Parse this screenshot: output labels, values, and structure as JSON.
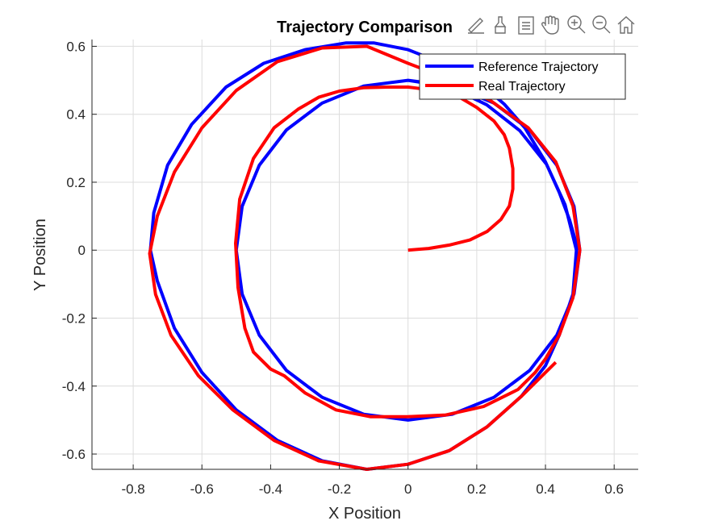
{
  "toolbar": {
    "icons": [
      "brush-pen-icon",
      "data-tips-icon",
      "legend-toggle-icon",
      "pan-hand-icon",
      "zoom-in-icon",
      "zoom-out-icon",
      "home-icon"
    ]
  },
  "chart_data": {
    "type": "line",
    "title": "Trajectory Comparison",
    "xlabel": "X Position",
    "ylabel": "Y Position",
    "xlim": [
      -0.92,
      0.67
    ],
    "ylim": [
      -0.645,
      0.62
    ],
    "xticks": [
      -0.8,
      -0.6,
      -0.4,
      -0.2,
      0,
      0.2,
      0.4,
      0.6
    ],
    "yticks": [
      -0.6,
      -0.4,
      -0.2,
      0,
      0.2,
      0.4,
      0.6
    ],
    "xtick_labels": [
      "-0.8",
      "-0.6",
      "-0.4",
      "-0.2",
      "0",
      "0.2",
      "0.4",
      "0.6"
    ],
    "ytick_labels": [
      "-0.6",
      "-0.4",
      "-0.2",
      "0",
      "0.2",
      "0.4",
      "0.6"
    ],
    "grid": true,
    "legend_position": "top-right",
    "series": [
      {
        "name": "Reference Trajectory",
        "color": "#0000ff",
        "points": [
          [
            0.0,
            0.5
          ],
          [
            0.129,
            0.483
          ],
          [
            0.25,
            0.433
          ],
          [
            0.354,
            0.354
          ],
          [
            0.433,
            0.25
          ],
          [
            0.483,
            0.129
          ],
          [
            0.5,
            0.0
          ],
          [
            0.483,
            -0.129
          ],
          [
            0.433,
            -0.25
          ],
          [
            0.354,
            -0.354
          ],
          [
            0.25,
            -0.433
          ],
          [
            0.129,
            -0.483
          ],
          [
            0.0,
            -0.5
          ],
          [
            -0.129,
            -0.483
          ],
          [
            -0.25,
            -0.433
          ],
          [
            -0.354,
            -0.354
          ],
          [
            -0.433,
            -0.25
          ],
          [
            -0.483,
            -0.129
          ],
          [
            -0.5,
            0.0
          ],
          [
            -0.483,
            0.129
          ],
          [
            -0.433,
            0.25
          ],
          [
            -0.354,
            0.354
          ],
          [
            -0.25,
            0.433
          ],
          [
            -0.129,
            0.483
          ],
          [
            0.0,
            0.5
          ],
          [
            0.121,
            0.481
          ],
          [
            0.229,
            0.428
          ],
          [
            0.325,
            0.352
          ],
          [
            0.403,
            0.253
          ],
          [
            0.457,
            0.134
          ],
          [
            0.49,
            0.0
          ],
          [
            0.48,
            -0.129
          ],
          [
            0.44,
            -0.25
          ],
          [
            0.4,
            -0.34
          ],
          [
            0.33,
            -0.43
          ],
          [
            0.23,
            -0.52
          ],
          [
            0.12,
            -0.59
          ],
          [
            0.0,
            -0.63
          ],
          [
            -0.12,
            -0.645
          ],
          [
            -0.25,
            -0.62
          ],
          [
            -0.38,
            -0.56
          ],
          [
            -0.5,
            -0.47
          ],
          [
            -0.6,
            -0.36
          ],
          [
            -0.68,
            -0.23
          ],
          [
            -0.73,
            -0.09
          ],
          [
            -0.75,
            0.0
          ],
          [
            -0.74,
            0.11
          ],
          [
            -0.7,
            0.25
          ],
          [
            -0.63,
            0.37
          ],
          [
            -0.53,
            0.48
          ],
          [
            -0.42,
            0.55
          ],
          [
            -0.3,
            0.59
          ],
          [
            -0.18,
            0.61
          ],
          [
            -0.1,
            0.61
          ],
          [
            0.0,
            0.59
          ],
          [
            0.1,
            0.55
          ],
          [
            0.2,
            0.5
          ],
          [
            0.28,
            0.43
          ],
          [
            0.34,
            0.36
          ],
          [
            0.4,
            0.26
          ],
          [
            0.44,
            0.17
          ],
          [
            0.47,
            0.09
          ],
          [
            0.495,
            0.0
          ]
        ]
      },
      {
        "name": "Real Trajectory",
        "color": "#ff0000",
        "points": [
          [
            0.0,
            0.0
          ],
          [
            0.06,
            0.005
          ],
          [
            0.12,
            0.015
          ],
          [
            0.18,
            0.03
          ],
          [
            0.23,
            0.055
          ],
          [
            0.27,
            0.09
          ],
          [
            0.295,
            0.13
          ],
          [
            0.305,
            0.18
          ],
          [
            0.305,
            0.24
          ],
          [
            0.295,
            0.3
          ],
          [
            0.28,
            0.34
          ],
          [
            0.25,
            0.38
          ],
          [
            0.2,
            0.42
          ],
          [
            0.15,
            0.45
          ],
          [
            0.08,
            0.47
          ],
          [
            0.0,
            0.48
          ],
          [
            -0.06,
            0.48
          ],
          [
            -0.13,
            0.478
          ],
          [
            -0.2,
            0.468
          ],
          [
            -0.26,
            0.45
          ],
          [
            -0.32,
            0.415
          ],
          [
            -0.39,
            0.36
          ],
          [
            -0.45,
            0.27
          ],
          [
            -0.49,
            0.15
          ],
          [
            -0.502,
            0.02
          ],
          [
            -0.495,
            -0.11
          ],
          [
            -0.475,
            -0.23
          ],
          [
            -0.45,
            -0.3
          ],
          [
            -0.4,
            -0.35
          ],
          [
            -0.36,
            -0.37
          ],
          [
            -0.3,
            -0.42
          ],
          [
            -0.21,
            -0.47
          ],
          [
            -0.11,
            -0.49
          ],
          [
            0.0,
            -0.49
          ],
          [
            0.11,
            -0.485
          ],
          [
            0.22,
            -0.46
          ],
          [
            0.32,
            -0.41
          ],
          [
            0.37,
            -0.36
          ],
          [
            0.4,
            -0.32
          ],
          [
            0.44,
            -0.25
          ],
          [
            0.48,
            -0.14
          ],
          [
            0.5,
            0.0
          ],
          [
            0.48,
            0.13
          ],
          [
            0.43,
            0.26
          ],
          [
            0.35,
            0.36
          ],
          [
            0.24,
            0.44
          ],
          [
            0.13,
            0.5
          ],
          [
            0.0,
            0.55
          ],
          [
            -0.12,
            0.6
          ],
          [
            -0.25,
            0.595
          ],
          [
            -0.38,
            0.555
          ],
          [
            -0.5,
            0.47
          ],
          [
            -0.6,
            0.36
          ],
          [
            -0.68,
            0.23
          ],
          [
            -0.73,
            0.1
          ],
          [
            -0.752,
            -0.01
          ],
          [
            -0.735,
            -0.13
          ],
          [
            -0.69,
            -0.25
          ],
          [
            -0.61,
            -0.37
          ],
          [
            -0.51,
            -0.47
          ],
          [
            -0.39,
            -0.56
          ],
          [
            -0.26,
            -0.62
          ],
          [
            -0.12,
            -0.645
          ],
          [
            0.0,
            -0.63
          ],
          [
            0.12,
            -0.59
          ],
          [
            0.23,
            -0.52
          ],
          [
            0.33,
            -0.43
          ],
          [
            0.4,
            -0.36
          ],
          [
            0.43,
            -0.33
          ]
        ]
      }
    ]
  }
}
